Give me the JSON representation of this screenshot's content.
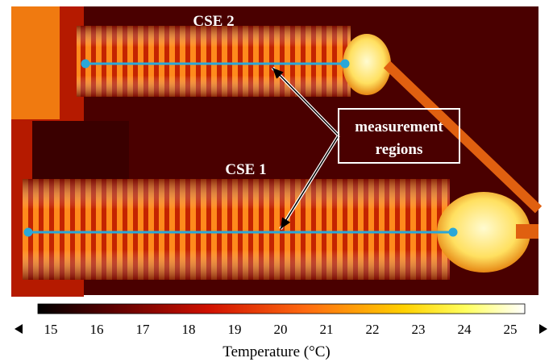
{
  "image": {
    "labels": [
      "CSE 2",
      "CSE 1"
    ],
    "annotation": [
      "measurement",
      "regions"
    ]
  },
  "colorbar": {
    "lim": [
      15,
      25
    ],
    "ticks": [
      15,
      16,
      17,
      18,
      19,
      20,
      21,
      22,
      23,
      24,
      25
    ],
    "label": "Temperature (°C)"
  }
}
